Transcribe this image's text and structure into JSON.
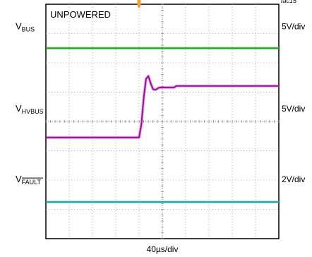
{
  "chart_data": {
    "type": "line",
    "figure_id": "tac15",
    "state_label": "UNPOWERED",
    "x_axis": {
      "label": "40µs/div",
      "divisions": 10,
      "range": [
        0,
        10
      ]
    },
    "y_axis": {
      "divisions": 8,
      "range": [
        0,
        8
      ]
    },
    "trigger_marker": {
      "x": 4.0
    },
    "series": [
      {
        "name": "V_BUS",
        "label_base": "V",
        "label_sub": "BUS",
        "label_overline": false,
        "scale": "5V/div",
        "color": "#1ea81e",
        "points": [
          [
            0,
            6.5
          ],
          [
            10,
            6.5
          ]
        ]
      },
      {
        "name": "V_HVBUS",
        "label_base": "V",
        "label_sub": "HVBUS",
        "label_overline": false,
        "scale": "5V/div",
        "color": "#a40aa4",
        "points": [
          [
            0,
            3.45
          ],
          [
            4.0,
            3.45
          ],
          [
            4.1,
            3.9
          ],
          [
            4.2,
            4.8
          ],
          [
            4.3,
            5.45
          ],
          [
            4.4,
            5.55
          ],
          [
            4.5,
            5.3
          ],
          [
            4.6,
            5.1
          ],
          [
            4.7,
            5.08
          ],
          [
            4.85,
            5.15
          ],
          [
            5.0,
            5.16
          ],
          [
            5.4,
            5.16
          ],
          [
            5.5,
            5.16
          ],
          [
            5.6,
            5.21
          ],
          [
            10,
            5.21
          ]
        ]
      },
      {
        "name": "V_FAULT",
        "label_base": "V",
        "label_sub": "FAULT",
        "label_overline": true,
        "scale": "2V/div",
        "color": "#1aa7a7",
        "points": [
          [
            0,
            1.25
          ],
          [
            10,
            1.25
          ]
        ]
      }
    ]
  }
}
